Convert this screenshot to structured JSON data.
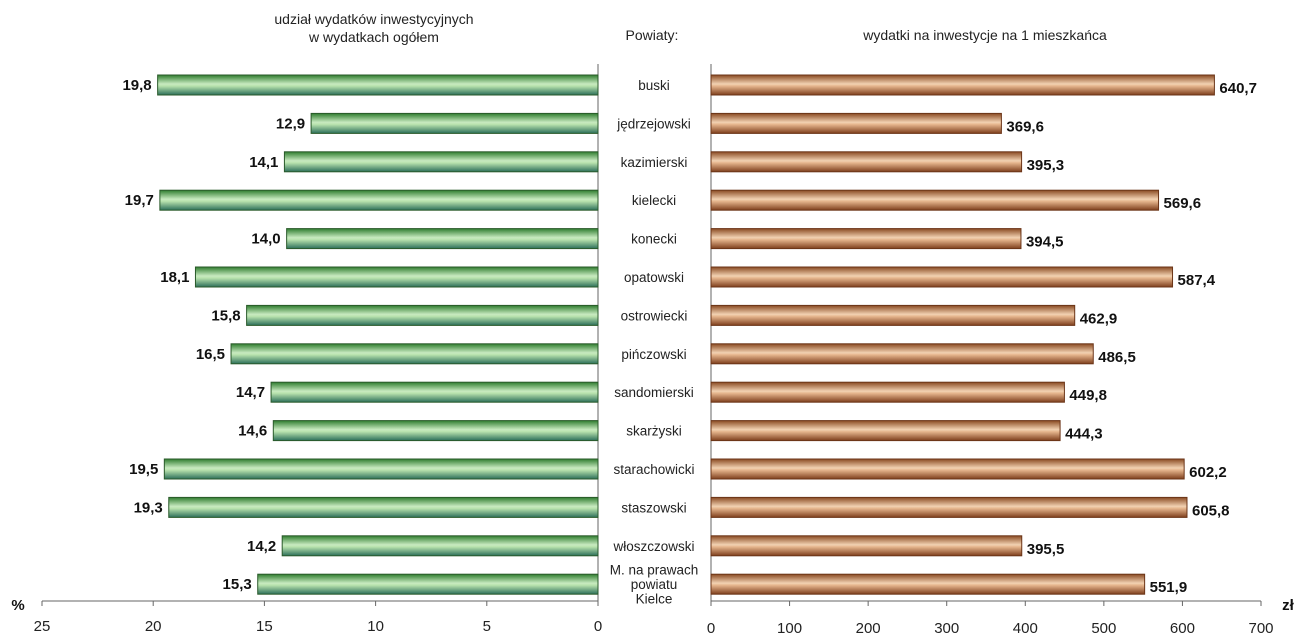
{
  "chart_data": {
    "type": "bar",
    "orientation": "horizontal-butterfly",
    "category_header": "Powiaty:",
    "categories": [
      [
        "buski"
      ],
      [
        "jędrzejowski"
      ],
      [
        "kazimierski"
      ],
      [
        "kielecki"
      ],
      [
        "konecki"
      ],
      [
        "opatowski"
      ],
      [
        "ostrowiecki"
      ],
      [
        "pińczowski"
      ],
      [
        "sandomierski"
      ],
      [
        "skarżyski"
      ],
      [
        "starachowicki"
      ],
      [
        "staszowski"
      ],
      [
        "włoszczowski"
      ],
      [
        "M. na prawach",
        "powiatu",
        "Kielce"
      ]
    ],
    "left": {
      "title": [
        "udział wydatków inwestycyjnych",
        "w wydatkach ogółem"
      ],
      "unit": "%",
      "xlim": [
        0,
        25
      ],
      "reversed": true,
      "ticks": [
        25,
        20,
        15,
        10,
        5,
        0
      ],
      "values": [
        19.8,
        12.9,
        14.1,
        19.7,
        14.0,
        18.1,
        15.8,
        16.5,
        14.7,
        14.6,
        19.5,
        19.3,
        14.2,
        15.3
      ],
      "labels": [
        "19,8",
        "12,9",
        "14,1",
        "19,7",
        "14,0",
        "18,1",
        "15,8",
        "16,5",
        "14,7",
        "14,6",
        "19,5",
        "19,3",
        "14,2",
        "15,3"
      ],
      "color": "#3f9b3f"
    },
    "right": {
      "title": [
        "wydatki na inwestycje na 1 mieszkańca"
      ],
      "unit": "zł",
      "xlim": [
        0,
        700
      ],
      "ticks": [
        0,
        100,
        200,
        300,
        400,
        500,
        600,
        700
      ],
      "values": [
        640.7,
        369.6,
        395.3,
        569.6,
        394.5,
        587.4,
        462.9,
        486.5,
        449.8,
        444.3,
        602.2,
        605.8,
        395.5,
        551.9
      ],
      "labels": [
        "640,7",
        "369,6",
        "395,3",
        "569,6",
        "394,5",
        "587,4",
        "462,9",
        "486,5",
        "449,8",
        "444,3",
        "602,2",
        "605,8",
        "395,5",
        "551,9"
      ],
      "color": "#b8734a"
    }
  }
}
